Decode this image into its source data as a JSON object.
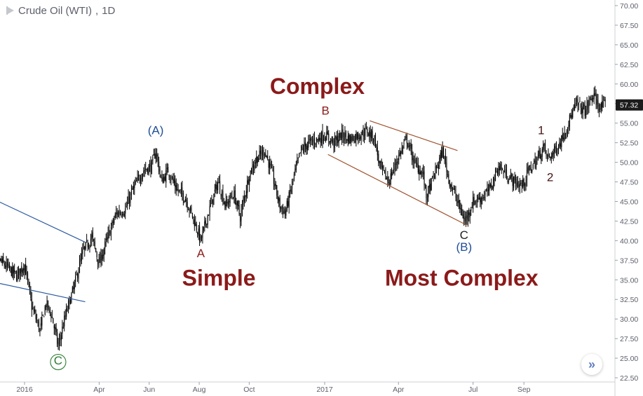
{
  "header": {
    "symbol": "Crude Oil (WTI)",
    "interval": "1D"
  },
  "price_badge": "57.32",
  "navigate_icon": "double-chevron-right-icon",
  "colors": {
    "candles": "#000000",
    "trendline_blue": "#2c5aa0",
    "channel_brown": "#a0522d",
    "label_red": "#8b1a1a",
    "label_blue": "#1f4e96",
    "label_green": "#2e7d32"
  },
  "chart_data": {
    "type": "candlestick",
    "title": "Crude Oil (WTI), 1D",
    "y_axis": {
      "ticks": [
        "70.00",
        "67.50",
        "65.00",
        "62.50",
        "60.00",
        "57.50",
        "55.00",
        "52.50",
        "50.00",
        "47.50",
        "45.00",
        "42.50",
        "40.00",
        "37.50",
        "35.00",
        "32.50",
        "30.00",
        "27.50",
        "25.00",
        "22.50"
      ],
      "range": [
        22.5,
        70.0
      ],
      "scale": "linear",
      "position": "right"
    },
    "x_axis": {
      "ticks": [
        {
          "label": "2016",
          "date": "2016-01-01"
        },
        {
          "label": "Apr",
          "date": "2016-04-01"
        },
        {
          "label": "Jun",
          "date": "2016-06-01"
        },
        {
          "label": "Aug",
          "date": "2016-08-01"
        },
        {
          "label": "Oct",
          "date": "2016-10-01"
        },
        {
          "label": "2017",
          "date": "2017-01-01"
        },
        {
          "label": "Apr",
          "date": "2017-04-01"
        },
        {
          "label": "Jul",
          "date": "2017-07-01"
        },
        {
          "label": "Sep",
          "date": "2017-09-01"
        }
      ]
    },
    "grid": false,
    "last_price": 57.32,
    "close_path": [
      [
        "2015-11-20",
        40.0
      ],
      [
        "2015-12-01",
        37.5
      ],
      [
        "2015-12-12",
        36.5
      ],
      [
        "2015-12-22",
        35.5
      ],
      [
        "2016-01-01",
        37.0
      ],
      [
        "2016-01-10",
        31.5
      ],
      [
        "2016-01-20",
        28.5
      ],
      [
        "2016-01-27",
        32.0
      ],
      [
        "2016-02-03",
        30.5
      ],
      [
        "2016-02-11",
        26.5
      ],
      [
        "2016-02-20",
        30.5
      ],
      [
        "2016-03-01",
        34.0
      ],
      [
        "2016-03-12",
        38.5
      ],
      [
        "2016-03-23",
        40.5
      ],
      [
        "2016-04-01",
        37.0
      ],
      [
        "2016-04-10",
        40.0
      ],
      [
        "2016-04-22",
        43.5
      ],
      [
        "2016-05-03",
        44.0
      ],
      [
        "2016-05-12",
        46.5
      ],
      [
        "2016-05-25",
        49.0
      ],
      [
        "2016-06-04",
        49.5
      ],
      [
        "2016-06-09",
        51.5
      ],
      [
        "2016-06-16",
        47.5
      ],
      [
        "2016-06-24",
        49.0
      ],
      [
        "2016-07-05",
        46.5
      ],
      [
        "2016-07-15",
        45.5
      ],
      [
        "2016-07-26",
        42.5
      ],
      [
        "2016-08-03",
        40.0
      ],
      [
        "2016-08-12",
        43.5
      ],
      [
        "2016-08-24",
        47.5
      ],
      [
        "2016-09-02",
        44.5
      ],
      [
        "2016-09-12",
        46.0
      ],
      [
        "2016-09-20",
        43.0
      ],
      [
        "2016-10-01",
        48.5
      ],
      [
        "2016-10-10",
        50.5
      ],
      [
        "2016-10-20",
        51.5
      ],
      [
        "2016-10-29",
        48.5
      ],
      [
        "2016-11-07",
        44.5
      ],
      [
        "2016-11-14",
        43.5
      ],
      [
        "2016-11-24",
        48.0
      ],
      [
        "2016-12-03",
        51.5
      ],
      [
        "2016-12-13",
        52.5
      ],
      [
        "2016-12-24",
        53.0
      ],
      [
        "2017-01-01",
        53.5
      ],
      [
        "2017-01-12",
        52.5
      ],
      [
        "2017-01-22",
        53.5
      ],
      [
        "2017-02-01",
        53.0
      ],
      [
        "2017-02-12",
        53.5
      ],
      [
        "2017-02-22",
        54.0
      ],
      [
        "2017-03-03",
        53.0
      ],
      [
        "2017-03-09",
        49.5
      ],
      [
        "2017-03-20",
        47.5
      ],
      [
        "2017-03-31",
        50.5
      ],
      [
        "2017-04-11",
        53.0
      ],
      [
        "2017-04-20",
        50.0
      ],
      [
        "2017-05-01",
        48.5
      ],
      [
        "2017-05-05",
        45.5
      ],
      [
        "2017-05-15",
        48.5
      ],
      [
        "2017-05-25",
        51.5
      ],
      [
        "2017-06-01",
        48.0
      ],
      [
        "2017-06-10",
        45.5
      ],
      [
        "2017-06-21",
        42.5
      ],
      [
        "2017-07-01",
        45.0
      ],
      [
        "2017-07-11",
        45.5
      ],
      [
        "2017-07-21",
        46.5
      ],
      [
        "2017-08-01",
        49.5
      ],
      [
        "2017-08-10",
        48.5
      ],
      [
        "2017-08-20",
        47.5
      ],
      [
        "2017-08-30",
        47.0
      ],
      [
        "2017-09-07",
        49.0
      ],
      [
        "2017-09-15",
        50.0
      ],
      [
        "2017-09-25",
        52.0
      ],
      [
        "2017-09-30",
        50.5
      ],
      [
        "2017-10-05",
        51.0
      ],
      [
        "2017-10-15",
        52.5
      ],
      [
        "2017-10-25",
        55.0
      ],
      [
        "2017-11-04",
        57.5
      ],
      [
        "2017-11-14",
        56.5
      ],
      [
        "2017-11-24",
        58.5
      ],
      [
        "2017-12-03",
        57.0
      ],
      [
        "2017-12-10",
        57.3
      ]
    ],
    "trendlines": [
      {
        "name": "upper-blue",
        "from": [
          "2015-11-20",
          45.5
        ],
        "to": [
          "2016-03-15",
          39.8
        ],
        "color": "#2c5aa0"
      },
      {
        "name": "lower-blue",
        "from": [
          "2015-11-20",
          34.8
        ],
        "to": [
          "2016-03-15",
          32.2
        ],
        "color": "#2c5aa0"
      },
      {
        "name": "channel-upper",
        "from": [
          "2017-02-25",
          55.3
        ],
        "to": [
          "2017-06-12",
          51.5
        ],
        "color": "#a0522d"
      },
      {
        "name": "channel-lower",
        "from": [
          "2017-01-05",
          51.0
        ],
        "to": [
          "2017-06-23",
          42.0
        ],
        "color": "#a0522d"
      }
    ],
    "wave_labels": [
      {
        "text": "(A)",
        "date": "2016-06-09",
        "price": 54.0,
        "color": "#1f4e96",
        "size": 17,
        "bold": false
      },
      {
        "text": "A",
        "date": "2016-08-03",
        "price": 38.3,
        "color": "#8b1a1a",
        "size": 17,
        "bold": false
      },
      {
        "text": "B",
        "date": "2017-01-02",
        "price": 56.5,
        "color": "#8b1a1a",
        "size": 17,
        "bold": false
      },
      {
        "text": "C",
        "date": "2017-06-20",
        "price": 40.6,
        "color": "#1f1f1f",
        "size": 17,
        "bold": false
      },
      {
        "text": "(B)",
        "date": "2017-06-20",
        "price": 39.1,
        "color": "#1f4e96",
        "size": 17,
        "bold": false
      },
      {
        "text": "1",
        "date": "2017-09-22",
        "price": 54.0,
        "color": "#4a1414",
        "size": 17,
        "bold": false
      },
      {
        "text": "2",
        "date": "2017-10-03",
        "price": 48.0,
        "color": "#4a1414",
        "size": 17,
        "bold": false
      },
      {
        "text": "C",
        "date": "2016-02-11",
        "price": 24.6,
        "color": "#2e7d32",
        "size": 17,
        "bold": false,
        "circled": true
      },
      {
        "text": "Complex",
        "date": "2016-12-23",
        "price": 59.5,
        "color": "#8b1a1a",
        "size": 32,
        "bold": true
      },
      {
        "text": "Simple",
        "date": "2016-08-25",
        "price": 35.0,
        "color": "#8b1a1a",
        "size": 32,
        "bold": true
      },
      {
        "text": "Most Complex",
        "date": "2017-06-17",
        "price": 35.0,
        "color": "#8b1a1a",
        "size": 32,
        "bold": true
      }
    ]
  }
}
